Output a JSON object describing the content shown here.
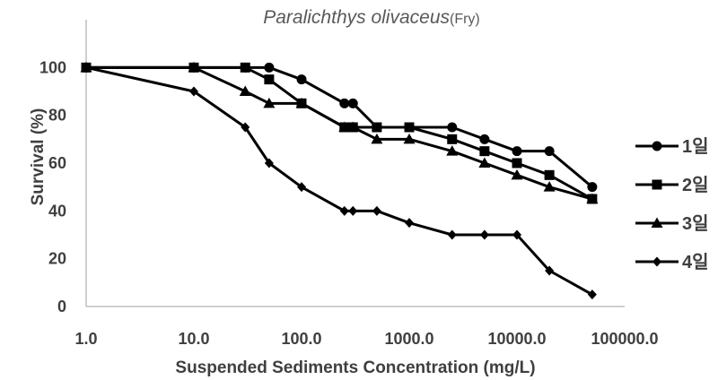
{
  "chart_data": {
    "type": "line",
    "title": "Paralichthys olivaceus",
    "title_suffix": "(Fry)",
    "xlabel": "Suspended Sediments Concentration (mg/L)",
    "ylabel": "Survival (%)",
    "x_scale": "log",
    "xlim": [
      1,
      100000
    ],
    "ylim": [
      0,
      120
    ],
    "x_tick_values": [
      1,
      10,
      100,
      1000,
      10000,
      100000
    ],
    "x_tick_labels": [
      "1.0",
      "10.0",
      "100.0",
      "1000.0",
      "10000.0",
      "100000.0"
    ],
    "y_tick_values": [
      0,
      20,
      40,
      60,
      80,
      100
    ],
    "y_tick_labels": [
      "0",
      "20",
      "40",
      "60",
      "80",
      "100"
    ],
    "grid": false,
    "legend_position": "right",
    "series": [
      {
        "name": "1일",
        "marker": "circle",
        "x": [
          1,
          10,
          30,
          50,
          100,
          250,
          300,
          500,
          1000,
          2500,
          5000,
          10000,
          20000,
          50000
        ],
        "y": [
          100,
          100,
          100,
          100,
          95,
          85,
          85,
          75,
          75,
          75,
          70,
          65,
          65,
          50
        ]
      },
      {
        "name": "2일",
        "marker": "square",
        "x": [
          1,
          10,
          30,
          50,
          100,
          250,
          300,
          500,
          1000,
          2500,
          5000,
          10000,
          20000,
          50000
        ],
        "y": [
          100,
          100,
          100,
          95,
          85,
          75,
          75,
          75,
          75,
          70,
          65,
          60,
          55,
          45
        ]
      },
      {
        "name": "3일",
        "marker": "triangle",
        "x": [
          1,
          10,
          30,
          50,
          100,
          250,
          300,
          500,
          1000,
          2500,
          5000,
          10000,
          20000,
          50000
        ],
        "y": [
          100,
          100,
          90,
          85,
          85,
          75,
          75,
          70,
          70,
          65,
          60,
          55,
          50,
          45
        ]
      },
      {
        "name": "4일",
        "marker": "diamond",
        "x": [
          1,
          10,
          30,
          50,
          100,
          250,
          300,
          500,
          1000,
          2500,
          5000,
          10000,
          20000,
          50000
        ],
        "y": [
          100,
          90,
          75,
          60,
          50,
          40,
          40,
          40,
          35,
          30,
          30,
          30,
          15,
          5
        ]
      }
    ]
  }
}
